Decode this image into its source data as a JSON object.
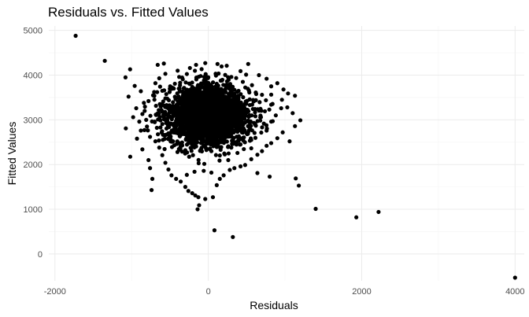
{
  "chart_data": {
    "type": "scatter",
    "title": "Residuals vs. Fitted Values",
    "xlabel": "Residuals",
    "ylabel": "Fitted Values",
    "xlim": [
      -2080,
      4120
    ],
    "ylim": [
      -600,
      5100
    ],
    "xticks": [
      -2000,
      0,
      2000,
      4000
    ],
    "yticks": [
      0,
      1000,
      2000,
      3000,
      4000,
      5000
    ],
    "xminor": [
      -1000,
      1000,
      3000
    ],
    "yminor": [
      500,
      1500,
      2500,
      3500,
      4500
    ],
    "grid": true,
    "legend": "none",
    "point_color": "#000000",
    "points": [
      [
        -1730,
        4880
      ],
      [
        -1350,
        4320
      ],
      [
        -1080,
        3950
      ],
      [
        -1020,
        4130
      ],
      [
        -960,
        3760
      ],
      [
        -1040,
        3520
      ],
      [
        -940,
        3260
      ],
      [
        -980,
        3060
      ],
      [
        -900,
        2960
      ],
      [
        -880,
        2760
      ],
      [
        -930,
        2580
      ],
      [
        -860,
        2340
      ],
      [
        -780,
        2100
      ],
      [
        -760,
        1920
      ],
      [
        -730,
        1680
      ],
      [
        -740,
        1430
      ],
      [
        -660,
        4230
      ],
      [
        -580,
        4260
      ],
      [
        -560,
        4030
      ],
      [
        -690,
        3820
      ],
      [
        -600,
        3650
      ],
      [
        -720,
        3550
      ],
      [
        -780,
        3420
      ],
      [
        -830,
        3200
      ],
      [
        -810,
        3000
      ],
      [
        -800,
        2850
      ],
      [
        -760,
        2620
      ],
      [
        -690,
        2520
      ],
      [
        -640,
        2380
      ],
      [
        -600,
        2210
      ],
      [
        -560,
        2040
      ],
      [
        -520,
        1890
      ],
      [
        -480,
        1760
      ],
      [
        -420,
        1680
      ],
      [
        -360,
        1620
      ],
      [
        -300,
        1500
      ],
      [
        -260,
        1410
      ],
      [
        -210,
        1360
      ],
      [
        -170,
        1310
      ],
      [
        -130,
        1270
      ],
      [
        -120,
        1090
      ],
      [
        -140,
        1000
      ],
      [
        -40,
        1230
      ],
      [
        60,
        1270
      ],
      [
        110,
        1540
      ],
      [
        150,
        1680
      ],
      [
        -280,
        1770
      ],
      [
        -180,
        1840
      ],
      [
        -60,
        1860
      ],
      [
        40,
        1820
      ],
      [
        200,
        1760
      ],
      [
        280,
        1880
      ],
      [
        340,
        1920
      ],
      [
        420,
        1960
      ],
      [
        480,
        1990
      ],
      [
        560,
        2120
      ],
      [
        640,
        2220
      ],
      [
        700,
        2300
      ],
      [
        760,
        2420
      ],
      [
        820,
        2480
      ],
      [
        900,
        2590
      ],
      [
        970,
        2720
      ],
      [
        1060,
        2520
      ],
      [
        1130,
        2860
      ],
      [
        1200,
        2990
      ],
      [
        1100,
        3150
      ],
      [
        1030,
        3280
      ],
      [
        960,
        3450
      ],
      [
        1040,
        3590
      ],
      [
        1130,
        3540
      ],
      [
        980,
        3680
      ],
      [
        900,
        3820
      ],
      [
        820,
        3750
      ],
      [
        760,
        3920
      ],
      [
        660,
        4000
      ],
      [
        520,
        4250
      ],
      [
        420,
        4090
      ],
      [
        240,
        4210
      ],
      [
        120,
        4250
      ],
      [
        -40,
        4270
      ],
      [
        -240,
        4160
      ],
      [
        -400,
        4100
      ],
      [
        -160,
        4230
      ],
      [
        620,
        2870
      ],
      [
        760,
        2760
      ],
      [
        840,
        2970
      ],
      [
        880,
        3100
      ],
      [
        950,
        3260
      ],
      [
        820,
        3340
      ],
      [
        1140,
        1690
      ],
      [
        1180,
        1530
      ],
      [
        800,
        1730
      ],
      [
        640,
        1810
      ],
      [
        1400,
        1010
      ],
      [
        1930,
        820
      ],
      [
        2220,
        940
      ],
      [
        80,
        530
      ],
      [
        320,
        380
      ],
      [
        4000,
        -530
      ],
      [
        -520,
        2700
      ],
      [
        -450,
        3700
      ],
      [
        -300,
        2320
      ],
      [
        -200,
        2210
      ],
      [
        260,
        2100
      ],
      [
        380,
        2260
      ],
      [
        450,
        3850
      ],
      [
        560,
        2550
      ],
      [
        -640,
        3930
      ],
      [
        -700,
        2960
      ],
      [
        -520,
        2880
      ],
      [
        -380,
        3960
      ],
      [
        -100,
        3980
      ],
      [
        100,
        3990
      ],
      [
        300,
        3960
      ],
      [
        -880,
        3640
      ],
      [
        -840,
        3380
      ],
      [
        -620,
        3300
      ],
      [
        -560,
        3480
      ],
      [
        700,
        3560
      ],
      [
        620,
        3440
      ],
      [
        -460,
        2520
      ],
      [
        -340,
        2430
      ],
      [
        -220,
        2380
      ],
      [
        -100,
        2330
      ],
      [
        40,
        2300
      ],
      [
        160,
        2330
      ],
      [
        300,
        2380
      ],
      [
        420,
        2450
      ],
      [
        520,
        2720
      ],
      [
        -560,
        2660
      ]
    ],
    "cluster": {
      "center": [
        0,
        3100
      ],
      "spread": [
        260,
        330
      ],
      "count": 2600
    }
  }
}
